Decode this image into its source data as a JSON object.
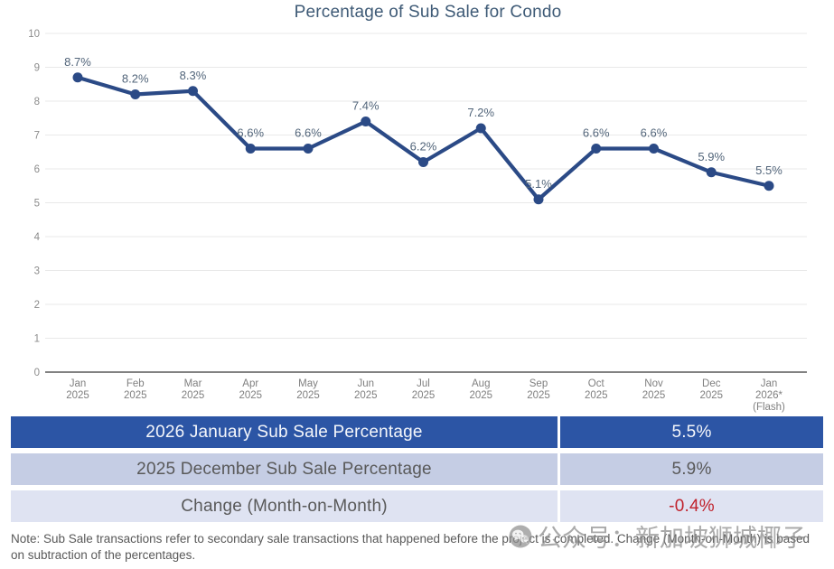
{
  "chart": {
    "title": "Percentage of Sub Sale for Condo"
  },
  "chart_data": {
    "type": "line",
    "title": "Percentage of Sub Sale for Condo",
    "categories": [
      [
        "Jan",
        "2025"
      ],
      [
        "Feb",
        "2025"
      ],
      [
        "Mar",
        "2025"
      ],
      [
        "Apr",
        "2025"
      ],
      [
        "May",
        "2025"
      ],
      [
        "Jun",
        "2025"
      ],
      [
        "Jul",
        "2025"
      ],
      [
        "Aug",
        "2025"
      ],
      [
        "Sep",
        "2025"
      ],
      [
        "Oct",
        "2025"
      ],
      [
        "Nov",
        "2025"
      ],
      [
        "Dec",
        "2025"
      ],
      [
        "Jan",
        "2026*",
        "(Flash)"
      ]
    ],
    "values": [
      8.7,
      8.2,
      8.3,
      6.6,
      6.6,
      7.4,
      6.2,
      7.2,
      5.1,
      6.6,
      6.6,
      5.9,
      5.5
    ],
    "point_labels": [
      "8.7%",
      "8.2%",
      "8.3%",
      "6.6%",
      "6.6%",
      "7.4%",
      "6.2%",
      "7.2%",
      "5.1%",
      "6.6%",
      "6.6%",
      "5.9%",
      "5.5%"
    ],
    "xlabel": "",
    "ylabel": "",
    "ylim": [
      0,
      10
    ],
    "y_ticks": [
      0,
      1,
      2,
      3,
      4,
      5,
      6,
      7,
      8,
      9,
      10
    ],
    "grid": true,
    "legend": "none",
    "line_color": "#2B4A86",
    "point_label_color": "#52657A",
    "tick_color": "#8C8C8C",
    "grid_color": "#E9E9E9",
    "axis_color": "#595959"
  },
  "summary_table": {
    "rows": [
      {
        "label": "2026 January Sub Sale Percentage",
        "value": "5.5%"
      },
      {
        "label": "2025 December Sub Sale Percentage",
        "value": "5.9%"
      },
      {
        "label": "Change (Month-on-Month)",
        "value": "-0.4%"
      }
    ],
    "header_bg": "#2C55A5",
    "row2_bg": "#C5CDE4",
    "row3_bg": "#DFE3F2",
    "negative_color": "#C0222C"
  },
  "note": {
    "text": "Note: Sub Sale transactions refer to secondary sale transactions that happened before the project is completed. Change (Month-on-Month) is based on subtraction of the percentages."
  },
  "watermark": {
    "icon": "wechat-icon",
    "text": "公众号：新加坡狮城椰子"
  }
}
